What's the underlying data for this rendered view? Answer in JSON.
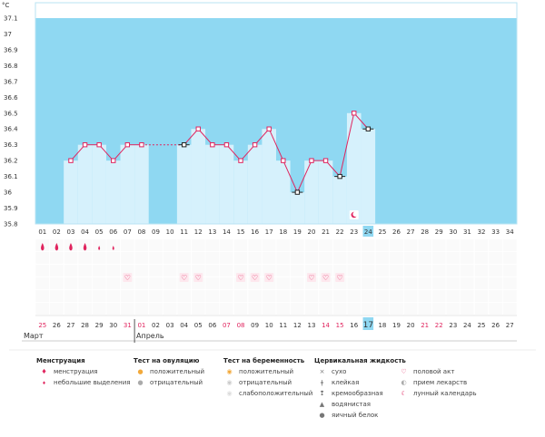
{
  "chart_data": {
    "type": "line",
    "y_unit": "°C",
    "ylim": [
      35.8,
      37.1
    ],
    "yticks": [
      "37.1",
      "37",
      "36.9",
      "36.8",
      "36.7",
      "36.6",
      "36.5",
      "36.4",
      "36.3",
      "36.2",
      "36.1",
      "36",
      "35.9",
      "35.8"
    ],
    "cycle_days": [
      "01",
      "02",
      "03",
      "04",
      "05",
      "06",
      "07",
      "08",
      "09",
      "10",
      "11",
      "12",
      "13",
      "14",
      "15",
      "16",
      "17",
      "18",
      "19",
      "20",
      "21",
      "22",
      "23",
      "24",
      "25",
      "26",
      "27",
      "28",
      "29",
      "30",
      "31",
      "32",
      "33",
      "34"
    ],
    "dates": [
      "25",
      "26",
      "27",
      "28",
      "29",
      "30",
      "31",
      "01",
      "02",
      "03",
      "04",
      "05",
      "06",
      "07",
      "08",
      "09",
      "10",
      "11",
      "12",
      "13",
      "14",
      "15",
      "16",
      "17",
      "18",
      "19",
      "20",
      "21",
      "22",
      "23",
      "24",
      "25",
      "26",
      "27"
    ],
    "date_is_weekend": [
      true,
      false,
      false,
      false,
      false,
      false,
      true,
      true,
      false,
      false,
      false,
      false,
      false,
      true,
      true,
      false,
      false,
      false,
      false,
      false,
      true,
      true,
      false,
      false,
      false,
      false,
      false,
      true,
      true,
      false,
      false,
      false,
      false,
      false
    ],
    "current_day_index": 23,
    "temperatures": [
      null,
      null,
      36.2,
      36.3,
      36.3,
      36.2,
      36.3,
      36.3,
      null,
      null,
      36.3,
      36.4,
      36.3,
      36.3,
      36.2,
      36.3,
      36.4,
      36.2,
      36.0,
      36.2,
      36.2,
      36.1,
      36.5,
      36.4
    ],
    "highlighted_points": [
      10,
      18,
      21,
      23
    ],
    "coverline_segment": [
      7,
      10
    ],
    "menstruation_days": [
      0,
      1,
      2,
      3,
      4,
      5
    ],
    "menstruation_small": [
      4,
      5
    ],
    "intercourse_days": [
      6,
      10,
      11,
      14,
      15,
      16,
      19,
      20,
      21
    ],
    "lunar_day": 22,
    "colors": {
      "band": "#8fd8f2",
      "bar": "#d6f1fc",
      "line": "#e0245e",
      "today": "#8fd8f2"
    }
  },
  "months": {
    "first": "Март",
    "second": "Апрель"
  },
  "legend": {
    "menstruation": {
      "title": "Менструация",
      "items": [
        "менструация",
        "небольшие выделения"
      ]
    },
    "ovulation": {
      "title": "Тест на овуляцию",
      "items": [
        "положительный",
        "отрицательный"
      ]
    },
    "pregnancy": {
      "title": "Тест на беременность",
      "items": [
        "положительный",
        "отрицательный",
        "слабоположительный"
      ]
    },
    "cervical": {
      "title": "Цервикальная жидкость",
      "items": [
        "сухо",
        "клейкая",
        "кремообразная",
        "водянистая",
        "яичный белок"
      ]
    },
    "other": {
      "items": [
        "половой акт",
        "прием лекарств",
        "лунный календарь"
      ]
    }
  }
}
